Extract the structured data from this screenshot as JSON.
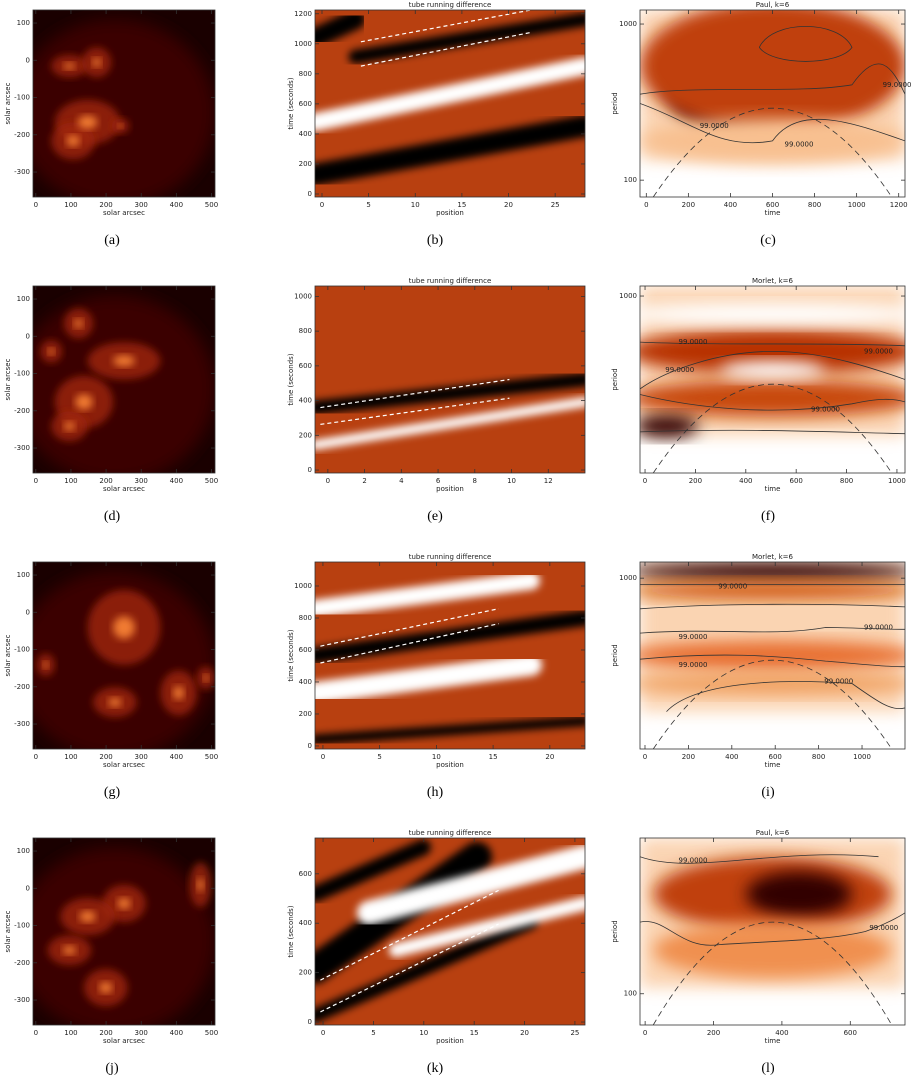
{
  "panels": [
    {
      "caption": "(a)",
      "xlabel": "solar arcsec",
      "ylabel": "solar arcsec",
      "xlim": [
        -8,
        510
      ],
      "ylim": [
        -367,
        135
      ],
      "xticks": [
        0,
        100,
        200,
        300,
        400,
        500
      ],
      "yticks": [
        -300,
        -200,
        -100,
        0,
        100
      ]
    },
    {
      "caption": "(b)",
      "title": "tube running difference",
      "xlabel": "position",
      "ylabel": "time (seconds)",
      "xlim": [
        -0.75,
        28.2
      ],
      "ylim": [
        -20,
        1225
      ],
      "xticks": [
        0,
        5,
        10,
        15,
        20,
        25
      ],
      "yticks": [
        0,
        200,
        400,
        600,
        800,
        1000,
        1200
      ]
    },
    {
      "caption": "(c)",
      "title": "Paul, k=6",
      "xlabel": "time",
      "ylabel": "period",
      "xlim": [
        -30,
        1230
      ],
      "ylim": [
        78,
        1230
      ],
      "ylog": true,
      "xticks": [
        0,
        200,
        400,
        600,
        800,
        1000,
        1200
      ],
      "yticks": [
        100,
        1000
      ],
      "contour_labels": [
        "99.0000",
        "99.0000",
        "99.0000"
      ]
    },
    {
      "caption": "(d)",
      "xlabel": "solar arcsec",
      "ylabel": "solar arcsec",
      "xlim": [
        -8,
        510
      ],
      "ylim": [
        -367,
        135
      ],
      "xticks": [
        0,
        100,
        200,
        300,
        400,
        500
      ],
      "yticks": [
        -300,
        -200,
        -100,
        0,
        100
      ]
    },
    {
      "caption": "(e)",
      "title": "tube running difference",
      "xlabel": "position",
      "ylabel": "time (seconds)",
      "xlim": [
        -0.7,
        14
      ],
      "ylim": [
        -17,
        1060
      ],
      "xticks": [
        0,
        2,
        4,
        6,
        8,
        10,
        12
      ],
      "yticks": [
        0,
        200,
        400,
        600,
        800,
        1000
      ]
    },
    {
      "caption": "(f)",
      "title": "Morlet, k=6",
      "xlabel": "time",
      "ylabel": "period",
      "xlim": [
        -20,
        1032
      ],
      "ylim": [
        73,
        1160
      ],
      "ylog": true,
      "xticks": [
        0,
        200,
        400,
        600,
        800,
        1000
      ],
      "yticks": [
        1000
      ],
      "contour_labels": [
        "99.0000",
        "99.0000",
        "99.0000",
        "99.0000"
      ]
    },
    {
      "caption": "(g)",
      "xlabel": "solar arcsec",
      "ylabel": "solar arcsec",
      "xlim": [
        -8,
        510
      ],
      "ylim": [
        -367,
        135
      ],
      "xticks": [
        0,
        100,
        200,
        300,
        400,
        500
      ],
      "yticks": [
        -300,
        -200,
        -100,
        0,
        100
      ]
    },
    {
      "caption": "(h)",
      "title": "tube running difference",
      "xlabel": "position",
      "ylabel": "time (seconds)",
      "xlim": [
        -0.7,
        23.1
      ],
      "ylim": [
        -19,
        1150
      ],
      "xticks": [
        0,
        5,
        10,
        15,
        20
      ],
      "yticks": [
        0,
        200,
        400,
        600,
        800,
        1000
      ]
    },
    {
      "caption": "(i)",
      "title": "Morlet, k=6",
      "xlabel": "time",
      "ylabel": "period",
      "xlim": [
        -23,
        1198
      ],
      "ylim": [
        80,
        1270
      ],
      "ylog": true,
      "xticks": [
        0,
        200,
        400,
        600,
        800,
        1000
      ],
      "yticks": [
        1000
      ],
      "contour_labels": [
        "99.0000",
        "99.0000",
        "99.0000",
        "99.0000",
        "99.0000"
      ]
    },
    {
      "caption": "(j)",
      "xlabel": "solar arcsec",
      "ylabel": "solar arcsec",
      "xlim": [
        -8,
        510
      ],
      "ylim": [
        -367,
        135
      ],
      "xticks": [
        0,
        100,
        200,
        300,
        400,
        500
      ],
      "yticks": [
        -300,
        -200,
        -100,
        0,
        100
      ]
    },
    {
      "caption": "(k)",
      "title": "tube running difference",
      "xlabel": "position",
      "ylabel": "time (seconds)",
      "xlim": [
        -0.8,
        26
      ],
      "ylim": [
        -12,
        745
      ],
      "xticks": [
        0,
        5,
        10,
        15,
        20,
        25
      ],
      "yticks": [
        0,
        200,
        400,
        600
      ]
    },
    {
      "caption": "(l)",
      "title": "Paul, k=6",
      "xlabel": "time",
      "ylabel": "period",
      "xlim": [
        -15,
        760
      ],
      "ylim": [
        63,
        1000
      ],
      "ylog": true,
      "xticks": [
        0,
        200,
        400,
        600
      ],
      "yticks": [
        100
      ],
      "contour_labels": [
        "99.0000",
        "99.0000"
      ]
    }
  ]
}
